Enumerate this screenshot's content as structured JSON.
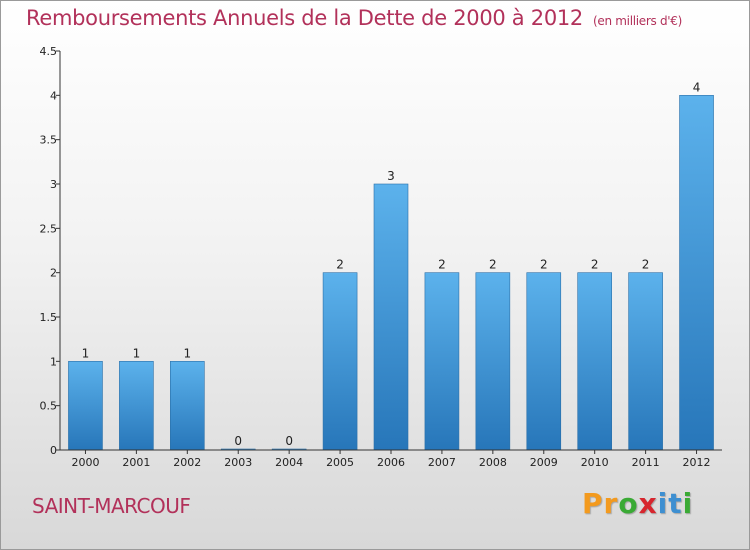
{
  "chart_data": {
    "type": "bar",
    "title": "Remboursements Annuels de la Dette de 2000 à 2012",
    "unit_note": "(en milliers d'€)",
    "categories": [
      "2000",
      "2001",
      "2002",
      "2003",
      "2004",
      "2005",
      "2006",
      "2007",
      "2008",
      "2009",
      "2010",
      "2011",
      "2012"
    ],
    "values": [
      1,
      1,
      1,
      0,
      0,
      2,
      3,
      2,
      2,
      2,
      2,
      2,
      4
    ],
    "value_labels": [
      "1",
      "1",
      "1",
      "0",
      "0",
      "2",
      "3",
      "2",
      "2",
      "2",
      "2",
      "2",
      "4"
    ],
    "ylim": [
      0,
      4.5
    ],
    "yticks": [
      "0",
      "0.5",
      "1",
      "1.5",
      "2",
      "2.5",
      "3",
      "3.5",
      "4",
      "4.5"
    ],
    "grid": false,
    "bar_color": "#3e97d8"
  },
  "footer": {
    "commune": "SAINT-MARCOUF",
    "logo": [
      "P",
      "r",
      "o",
      "x",
      "i",
      "t",
      "i"
    ],
    "logo_colors": [
      "#f39a1e",
      "#f39a1e",
      "#3aaa35",
      "#d7262e",
      "#3d8fd1",
      "#3d8fd1",
      "#3aaa35"
    ]
  }
}
